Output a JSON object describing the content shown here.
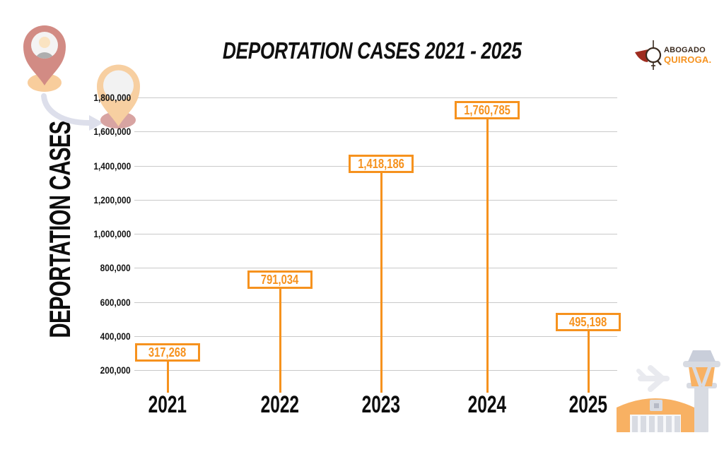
{
  "logo": {
    "line1": "ABOGADO",
    "line2": "QUIROGA.",
    "icon": "scales-q-logo-icon"
  },
  "colors": {
    "accent": "#F6921E",
    "grid": "#C9C9C9",
    "text": "#101010",
    "logo_dark": "#3B2B1F",
    "logo_red": "#9E2C1F",
    "pin_rose": "#D28B84",
    "pin_peach": "#F7CFA1",
    "shadow_peach": "#F8CD9C",
    "shadow_rose": "#D8A4A2",
    "arrow_gray": "#DDDFEB",
    "airport_orange": "#F8B163",
    "airport_gray": "#D8DBE2"
  },
  "icons": {
    "top_left": "migration-pins-with-arrow",
    "bottom_right": "airport-terminal-with-control-tower-and-plane"
  },
  "chart_data": {
    "type": "bar",
    "variant": "lollipop-labeled-values",
    "title": "DEPORTATION CASES 2021 - 2025",
    "xlabel": "",
    "ylabel": "DEPORTATION CASES",
    "categories": [
      "2021",
      "2022",
      "2023",
      "2024",
      "2025"
    ],
    "values": [
      317268,
      791034,
      1418186,
      1760785,
      495198
    ],
    "value_labels": [
      "317,268",
      "791,034",
      "1,418,186",
      "1,760,785",
      "495,198"
    ],
    "ylim": [
      0,
      1800000
    ],
    "ytick_values": [
      1800000,
      1600000,
      1400000,
      1200000,
      1000000,
      800000,
      600000,
      400000,
      200000
    ],
    "ytick_labels": [
      "1,800,000",
      "1,600,000",
      "1,400,000",
      "1,200,000",
      "1,000,000",
      "800,000",
      "600,000",
      "400,000",
      "200,000"
    ],
    "grid": true,
    "legend": false,
    "accent_color": "#F6921E"
  }
}
